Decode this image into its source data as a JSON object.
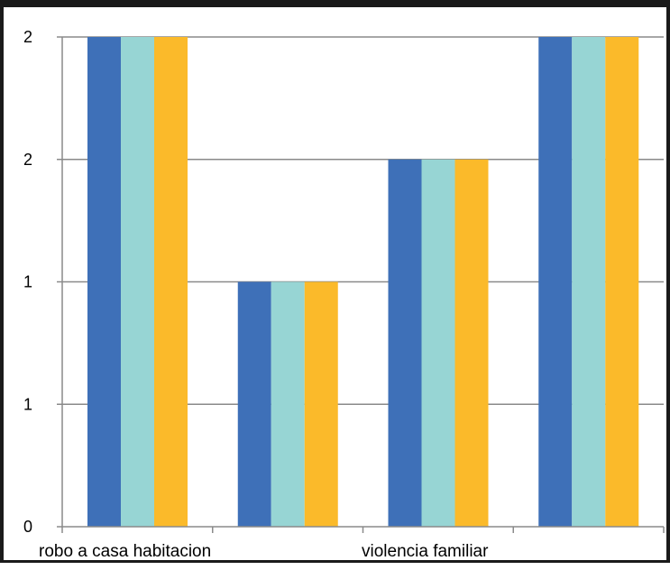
{
  "chart_data": {
    "type": "bar",
    "categories": [
      "robo a casa habitacion",
      "",
      "violencia familiar",
      ""
    ],
    "series": [
      {
        "color": "#3E70B8",
        "values": [
          2,
          1,
          1.5,
          2
        ]
      },
      {
        "color": "#97D5D4",
        "values": [
          2,
          1,
          1.5,
          2
        ]
      },
      {
        "color": "#FBBA2A",
        "values": [
          2,
          1,
          1.5,
          2
        ]
      }
    ],
    "ylim": [
      0,
      2
    ],
    "y_ticks": [
      {
        "value": 0,
        "label": "0"
      },
      {
        "value": 0.5,
        "label": "1"
      },
      {
        "value": 1,
        "label": "1"
      },
      {
        "value": 1.5,
        "label": "2"
      },
      {
        "value": 2,
        "label": "2"
      }
    ],
    "grid": true,
    "legend": "none"
  }
}
